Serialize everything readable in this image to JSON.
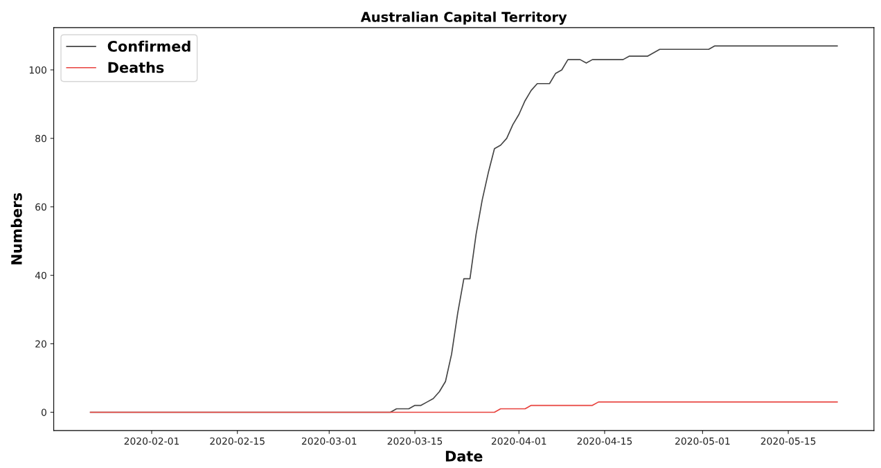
{
  "chart_data": {
    "type": "line",
    "title": "Australian Capital Territory",
    "xlabel": "Date",
    "ylabel": "Numbers",
    "series": [
      {
        "name": "Confirmed",
        "color": "#444444",
        "x": [
          "2020-01-22",
          "2020-03-11",
          "2020-03-12",
          "2020-03-14",
          "2020-03-15",
          "2020-03-16",
          "2020-03-17",
          "2020-03-18",
          "2020-03-19",
          "2020-03-20",
          "2020-03-21",
          "2020-03-22",
          "2020-03-23",
          "2020-03-24",
          "2020-03-25",
          "2020-03-26",
          "2020-03-27",
          "2020-03-28",
          "2020-03-29",
          "2020-03-30",
          "2020-03-31",
          "2020-04-01",
          "2020-04-02",
          "2020-04-03",
          "2020-04-04",
          "2020-04-06",
          "2020-04-07",
          "2020-04-08",
          "2020-04-09",
          "2020-04-11",
          "2020-04-12",
          "2020-04-13",
          "2020-04-18",
          "2020-04-19",
          "2020-04-22",
          "2020-04-23",
          "2020-04-24",
          "2020-05-02",
          "2020-05-03",
          "2020-05-23"
        ],
        "values": [
          0,
          0,
          1,
          1,
          2,
          2,
          3,
          4,
          6,
          9,
          17,
          29,
          39,
          39,
          52,
          62,
          70,
          77,
          78,
          80,
          84,
          87,
          91,
          94,
          96,
          96,
          99,
          100,
          103,
          103,
          102,
          103,
          103,
          104,
          104,
          105,
          106,
          106,
          107,
          107
        ]
      },
      {
        "name": "Deaths",
        "color": "#e8413c",
        "x": [
          "2020-01-22",
          "2020-03-28",
          "2020-03-29",
          "2020-04-02",
          "2020-04-03",
          "2020-04-13",
          "2020-04-14",
          "2020-05-23"
        ],
        "values": [
          0,
          0,
          1,
          1,
          2,
          2,
          3,
          3
        ]
      }
    ],
    "xlim": [
      "2020-01-16",
      "2020-05-29"
    ],
    "xticks": [
      "2020-02-01",
      "2020-02-15",
      "2020-03-01",
      "2020-03-15",
      "2020-04-01",
      "2020-04-15",
      "2020-05-01",
      "2020-05-15"
    ],
    "ylim": [
      -5.35,
      112.35
    ],
    "yticks": [
      0,
      20,
      40,
      60,
      80,
      100
    ],
    "legend": "top left",
    "grid": false,
    "marker": "none",
    "line_style": "solid"
  }
}
